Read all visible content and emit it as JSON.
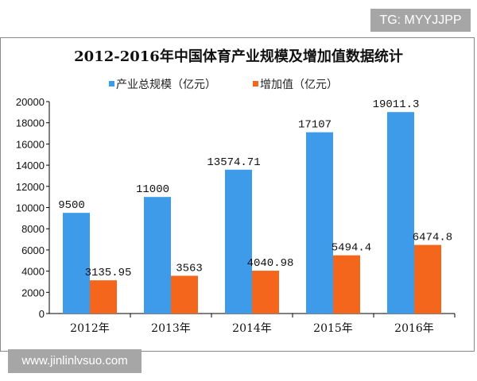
{
  "watermarks": {
    "top_right": "TG: MYYJJPP",
    "bottom_left": "www.jinlinlvsuo.com"
  },
  "chart_data": {
    "type": "bar",
    "title": "2012-2016年中国体育产业规模及增加值数据统计",
    "categories": [
      "2012年",
      "2013年",
      "2014年",
      "2015年",
      "2016年"
    ],
    "series": [
      {
        "name": "产业总规模（亿元）",
        "values": [
          9500,
          11000,
          13574.71,
          17107,
          19011.3
        ],
        "labels": [
          "9500",
          "11000",
          "13574.71",
          "17107",
          "19011.3"
        ],
        "color": "#3d9be9"
      },
      {
        "name": "增加值（亿元）",
        "values": [
          3135.95,
          3563,
          4040.98,
          5494.4,
          6474.8
        ],
        "labels": [
          "3135.95",
          "3563",
          "4040.98",
          "5494.4",
          "6474.8"
        ],
        "color": "#f4661b"
      }
    ],
    "yticks": [
      0,
      2000,
      4000,
      6000,
      8000,
      10000,
      12000,
      14000,
      16000,
      18000,
      20000
    ],
    "ylim": [
      0,
      20000
    ],
    "grid": false,
    "legend": "top"
  }
}
